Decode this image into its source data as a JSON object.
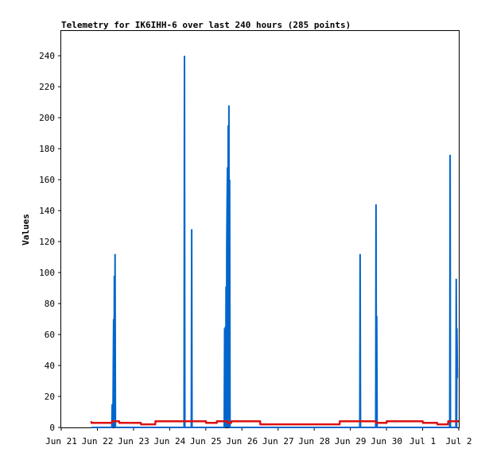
{
  "chart_data": {
    "type": "line",
    "title": "Telemetry for IK6IHH-6 over last 240 hours (285 points)",
    "xlabel": "",
    "ylabel": "Values",
    "x_tick_labels": [
      "Jun 21",
      "Jun 22",
      "Jun 23",
      "Jun 24",
      "Jun 25",
      "Jun 26",
      "Jun 27",
      "Jun 28",
      "Jun 29",
      "Jun 30",
      "Jul 1",
      "Jul 2"
    ],
    "x_tick_values": [
      0,
      1,
      2,
      3,
      4,
      5,
      6,
      7,
      8,
      9,
      10,
      11
    ],
    "y_tick_labels": [
      "0",
      "20",
      "40",
      "60",
      "80",
      "100",
      "120",
      "140",
      "160",
      "180",
      "200",
      "220",
      "240"
    ],
    "xlim": [
      0,
      11
    ],
    "ylim": [
      0,
      256
    ],
    "grid": false,
    "legend": "none",
    "series": [
      {
        "color": "#0066cc",
        "x": [
          0.83,
          1.4,
          1.41,
          1.43,
          1.44,
          1.45,
          1.46,
          1.47,
          1.48,
          1.49,
          1.5,
          1.52,
          3.4,
          3.41,
          3.42,
          3.6,
          3.61,
          3.62,
          4.51,
          4.52,
          4.53,
          4.54,
          4.55,
          4.56,
          4.57,
          4.58,
          4.59,
          4.6,
          4.61,
          4.62,
          4.63,
          4.64,
          4.65,
          4.66,
          4.67,
          4.68,
          4.69,
          8.26,
          8.27,
          8.28,
          8.7,
          8.71,
          8.72,
          8.73,
          8.74,
          10.75,
          10.76,
          10.77,
          10.92,
          10.93,
          10.94,
          10.95,
          10.96,
          10.97
        ],
        "y": [
          0,
          0,
          15,
          0,
          42,
          70,
          0,
          98,
          0,
          112,
          0,
          0,
          0,
          240,
          0,
          0,
          128,
          0,
          0,
          64,
          0,
          65,
          0,
          91,
          0,
          117,
          143,
          168,
          0,
          195,
          0,
          208,
          0,
          160,
          0,
          0,
          0,
          0,
          112,
          0,
          0,
          144,
          0,
          72,
          0,
          0,
          176,
          0,
          0,
          96,
          0,
          64,
          32,
          32
        ]
      },
      {
        "color": "#dd1111",
        "x": [
          0.83,
          0.84,
          1.4,
          1.41,
          1.6,
          1.61,
          2.2,
          2.21,
          2.6,
          2.61,
          3.5,
          3.51,
          4.0,
          4.01,
          4.3,
          4.31,
          4.6,
          4.61,
          4.7,
          4.71,
          5.5,
          5.51,
          7.5,
          7.51,
          7.7,
          7.71,
          8.7,
          8.71,
          9.0,
          9.01,
          10.0,
          10.01,
          10.4,
          10.41,
          10.7,
          10.71,
          11.0
        ],
        "y": [
          4,
          3,
          3,
          4,
          4,
          3,
          3,
          2,
          2,
          4,
          4,
          4,
          4,
          3,
          3,
          4,
          4,
          3,
          3,
          4,
          4,
          2,
          2,
          2,
          2,
          4,
          4,
          3,
          3,
          4,
          4,
          3,
          3,
          2,
          2,
          4,
          4
        ]
      }
    ]
  }
}
